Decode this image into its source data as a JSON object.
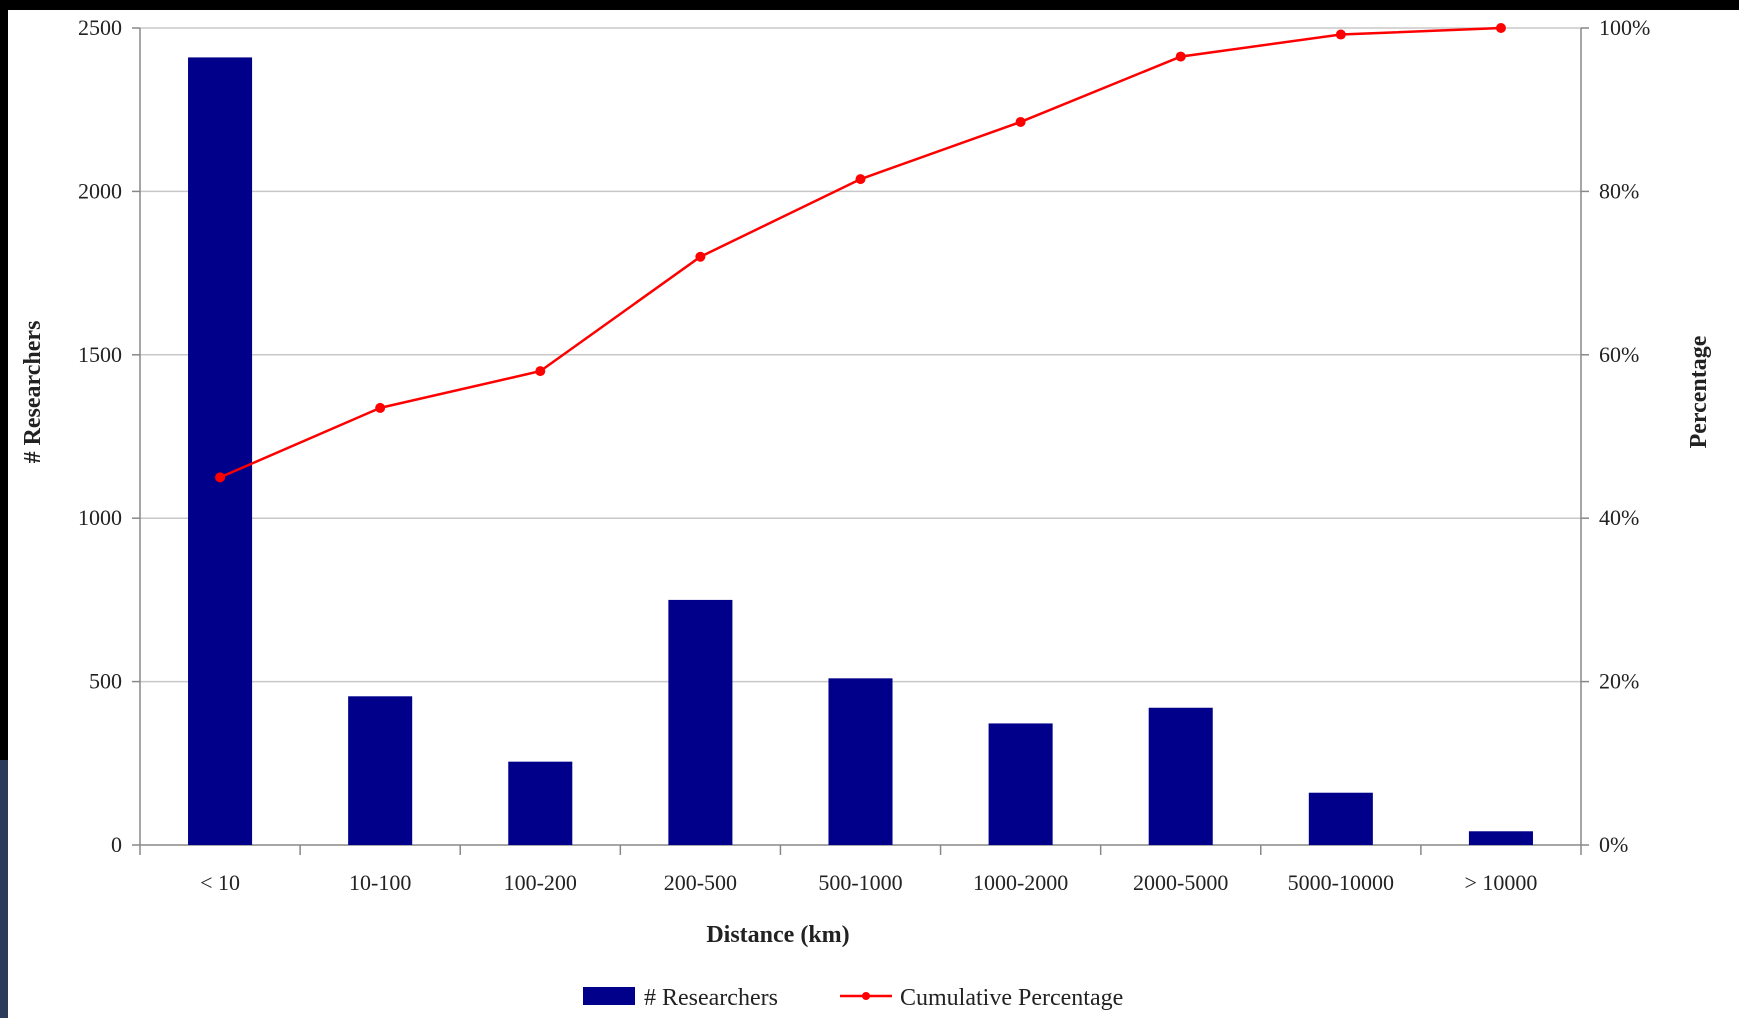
{
  "chart_data": {
    "type": "bar",
    "categories": [
      "< 10",
      "10-100",
      "100-200",
      "200-500",
      "500-1000",
      "1000-2000",
      "2000-5000",
      "5000-10000",
      "> 10000"
    ],
    "series": [
      {
        "name": "# Researchers",
        "type": "bar",
        "axis": "left",
        "color": "#00008b",
        "values": [
          2410,
          455,
          255,
          750,
          510,
          372,
          420,
          160,
          42
        ]
      },
      {
        "name": "Cumulative Percentage",
        "type": "line",
        "axis": "right",
        "color": "#ff0000",
        "values": [
          45,
          53.5,
          58,
          72,
          81.5,
          88.5,
          96.5,
          99.2,
          100
        ]
      }
    ],
    "xlabel": "Distance (km)",
    "ylabel": "# Researchers",
    "ylabel_right": "Percentage",
    "ylim": [
      0,
      2500
    ],
    "ylim_right": [
      0,
      100
    ],
    "yticks": [
      "0",
      "500",
      "1000",
      "1500",
      "2000",
      "2500"
    ],
    "yticks_right": [
      "0%",
      "20%",
      "40%",
      "60%",
      "80%",
      "100%"
    ],
    "grid": "horizontal",
    "legend_position": "bottom-center"
  }
}
